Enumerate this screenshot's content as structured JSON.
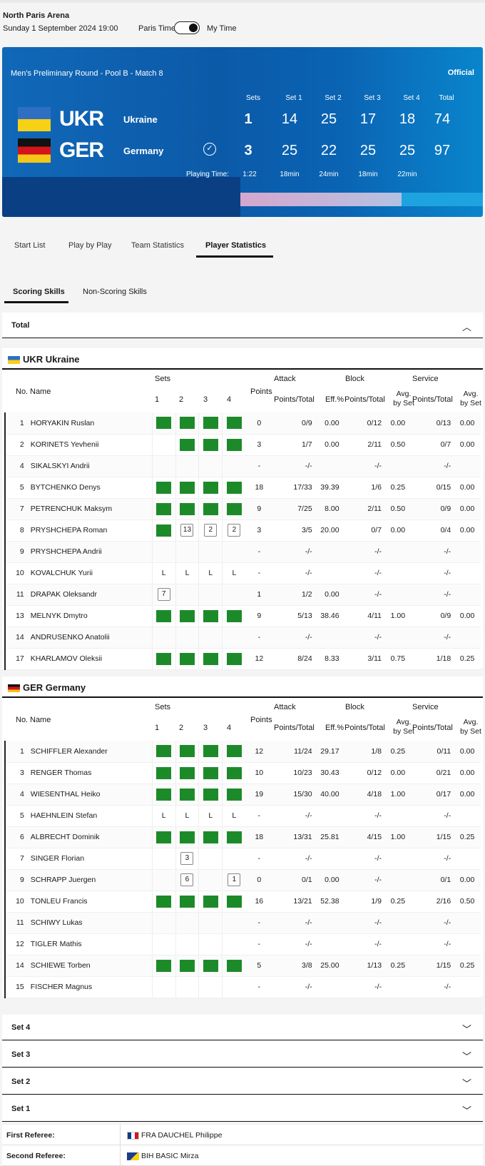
{
  "header": {
    "venue": "North Paris Arena",
    "date": "Sunday 1 September 2024 19:00",
    "tz_paris": "Paris Time",
    "tz_my": "My Time"
  },
  "match": {
    "round": "Men's Preliminary Round - Pool B - Match 8",
    "status": "Official",
    "headers": [
      "Sets",
      "Set 1",
      "Set 2",
      "Set 3",
      "Set 4",
      "Total"
    ],
    "teams": [
      {
        "code": "UKR",
        "name": "Ukraine",
        "sets": "1",
        "set_scores": [
          "14",
          "25",
          "17",
          "18"
        ],
        "total": "74"
      },
      {
        "code": "GER",
        "name": "Germany",
        "sets": "3",
        "set_scores": [
          "25",
          "22",
          "25",
          "25"
        ],
        "total": "97"
      }
    ],
    "playing_time_label": "Playing Time:",
    "playing_time": [
      "1:22",
      "18min",
      "24min",
      "18min",
      "22min"
    ]
  },
  "tabs": [
    "Start List",
    "Play by Play",
    "Team Statistics",
    "Player Statistics"
  ],
  "subtabs": [
    "Scoring Skills",
    "Non-Scoring Skills"
  ],
  "total_label": "Total",
  "table_headers": {
    "no": "No.",
    "name": "Name",
    "sets": "Sets",
    "set_nums": [
      "1",
      "2",
      "3",
      "4"
    ],
    "points": "Points",
    "attack": "Attack",
    "block": "Block",
    "service": "Service",
    "points_total": "Points/Total",
    "eff": "Eff.%",
    "avg_by_set_1": "Avg.",
    "avg_by_set_2": "by Set"
  },
  "ukr": {
    "code": "UKR",
    "name": "Ukraine",
    "players": [
      {
        "no": "1",
        "name": "HORYAKIN Ruslan",
        "sets": [
          "G",
          "G",
          "G",
          "G"
        ],
        "pts": "0",
        "att": "0/9",
        "eff": "0.00",
        "blk": "0/12",
        "blk_avg": "0.00",
        "srv": "0/13",
        "srv_avg": "0.00"
      },
      {
        "no": "2",
        "name": "KORINETS Yevhenii",
        "sets": [
          "",
          "G",
          "G",
          "G"
        ],
        "pts": "3",
        "att": "1/7",
        "eff": "0.00",
        "blk": "2/11",
        "blk_avg": "0.50",
        "srv": "0/7",
        "srv_avg": "0.00"
      },
      {
        "no": "4",
        "name": "SIKALSKYI Andrii",
        "sets": [
          "",
          "",
          "",
          ""
        ],
        "pts": "-",
        "att": "-/-",
        "eff": "",
        "blk": "-/-",
        "blk_avg": "",
        "srv": "-/-",
        "srv_avg": ""
      },
      {
        "no": "5",
        "name": "BYTCHENKO Denys",
        "sets": [
          "G",
          "G",
          "G",
          "G"
        ],
        "pts": "18",
        "att": "17/33",
        "eff": "39.39",
        "blk": "1/6",
        "blk_avg": "0.25",
        "srv": "0/15",
        "srv_avg": "0.00"
      },
      {
        "no": "7",
        "name": "PETRENCHUK Maksym",
        "sets": [
          "G",
          "G",
          "G",
          "G"
        ],
        "pts": "9",
        "att": "7/25",
        "eff": "8.00",
        "blk": "2/11",
        "blk_avg": "0.50",
        "srv": "0/9",
        "srv_avg": "0.00"
      },
      {
        "no": "8",
        "name": "PRYSHCHEPA Roman",
        "sets": [
          "G",
          "B:13",
          "B:2",
          "B:2"
        ],
        "pts": "3",
        "att": "3/5",
        "eff": "20.00",
        "blk": "0/7",
        "blk_avg": "0.00",
        "srv": "0/4",
        "srv_avg": "0.00"
      },
      {
        "no": "9",
        "name": "PRYSHCHEPA Andrii",
        "sets": [
          "",
          "",
          "",
          ""
        ],
        "pts": "-",
        "att": "-/-",
        "eff": "",
        "blk": "-/-",
        "blk_avg": "",
        "srv": "-/-",
        "srv_avg": ""
      },
      {
        "no": "10",
        "name": "KOVALCHUK Yurii",
        "sets": [
          "L",
          "L",
          "L",
          "L"
        ],
        "pts": "-",
        "att": "-/-",
        "eff": "",
        "blk": "-/-",
        "blk_avg": "",
        "srv": "-/-",
        "srv_avg": ""
      },
      {
        "no": "11",
        "name": "DRAPAK Oleksandr",
        "sets": [
          "B:7",
          "",
          "",
          ""
        ],
        "pts": "1",
        "att": "1/2",
        "eff": "0.00",
        "blk": "-/-",
        "blk_avg": "",
        "srv": "-/-",
        "srv_avg": ""
      },
      {
        "no": "13",
        "name": "MELNYK Dmytro",
        "sets": [
          "G",
          "G",
          "G",
          "G"
        ],
        "pts": "9",
        "att": "5/13",
        "eff": "38.46",
        "blk": "4/11",
        "blk_avg": "1.00",
        "srv": "0/9",
        "srv_avg": "0.00"
      },
      {
        "no": "14",
        "name": "ANDRUSENKO Anatolii",
        "sets": [
          "",
          "",
          "",
          ""
        ],
        "pts": "-",
        "att": "-/-",
        "eff": "",
        "blk": "-/-",
        "blk_avg": "",
        "srv": "-/-",
        "srv_avg": ""
      },
      {
        "no": "17",
        "name": "KHARLAMOV Oleksii",
        "sets": [
          "G",
          "G",
          "G",
          "G"
        ],
        "pts": "12",
        "att": "8/24",
        "eff": "8.33",
        "blk": "3/11",
        "blk_avg": "0.75",
        "srv": "1/18",
        "srv_avg": "0.25"
      }
    ]
  },
  "ger": {
    "code": "GER",
    "name": "Germany",
    "players": [
      {
        "no": "1",
        "name": "SCHIFFLER Alexander",
        "sets": [
          "G",
          "G",
          "G",
          "G"
        ],
        "pts": "12",
        "att": "11/24",
        "eff": "29.17",
        "blk": "1/8",
        "blk_avg": "0.25",
        "srv": "0/11",
        "srv_avg": "0.00"
      },
      {
        "no": "3",
        "name": "RENGER Thomas",
        "sets": [
          "G",
          "G",
          "G",
          "G"
        ],
        "pts": "10",
        "att": "10/23",
        "eff": "30.43",
        "blk": "0/12",
        "blk_avg": "0.00",
        "srv": "0/21",
        "srv_avg": "0.00"
      },
      {
        "no": "4",
        "name": "WIESENTHAL Heiko",
        "sets": [
          "G",
          "G",
          "G",
          "G"
        ],
        "pts": "19",
        "att": "15/30",
        "eff": "40.00",
        "blk": "4/18",
        "blk_avg": "1.00",
        "srv": "0/17",
        "srv_avg": "0.00"
      },
      {
        "no": "5",
        "name": "HAEHNLEIN Stefan",
        "sets": [
          "L",
          "L",
          "L",
          "L"
        ],
        "pts": "-",
        "att": "-/-",
        "eff": "",
        "blk": "-/-",
        "blk_avg": "",
        "srv": "-/-",
        "srv_avg": ""
      },
      {
        "no": "6",
        "name": "ALBRECHT Dominik",
        "sets": [
          "G",
          "G",
          "G",
          "G"
        ],
        "pts": "18",
        "att": "13/31",
        "eff": "25.81",
        "blk": "4/15",
        "blk_avg": "1.00",
        "srv": "1/15",
        "srv_avg": "0.25"
      },
      {
        "no": "7",
        "name": "SINGER Florian",
        "sets": [
          "",
          "B:3",
          "",
          ""
        ],
        "pts": "-",
        "att": "-/-",
        "eff": "",
        "blk": "-/-",
        "blk_avg": "",
        "srv": "-/-",
        "srv_avg": ""
      },
      {
        "no": "9",
        "name": "SCHRAPP Juergen",
        "sets": [
          "",
          "B:6",
          "",
          "B:1"
        ],
        "pts": "0",
        "att": "0/1",
        "eff": "0.00",
        "blk": "-/-",
        "blk_avg": "",
        "srv": "0/1",
        "srv_avg": "0.00"
      },
      {
        "no": "10",
        "name": "TONLEU Francis",
        "sets": [
          "G",
          "G",
          "G",
          "G"
        ],
        "pts": "16",
        "att": "13/21",
        "eff": "52.38",
        "blk": "1/9",
        "blk_avg": "0.25",
        "srv": "2/16",
        "srv_avg": "0.50"
      },
      {
        "no": "11",
        "name": "SCHIWY Lukas",
        "sets": [
          "",
          "",
          "",
          ""
        ],
        "pts": "-",
        "att": "-/-",
        "eff": "",
        "blk": "-/-",
        "blk_avg": "",
        "srv": "-/-",
        "srv_avg": ""
      },
      {
        "no": "12",
        "name": "TIGLER Mathis",
        "sets": [
          "",
          "",
          "",
          ""
        ],
        "pts": "-",
        "att": "-/-",
        "eff": "",
        "blk": "-/-",
        "blk_avg": "",
        "srv": "-/-",
        "srv_avg": ""
      },
      {
        "no": "14",
        "name": "SCHIEWE Torben",
        "sets": [
          "G",
          "G",
          "G",
          "G"
        ],
        "pts": "5",
        "att": "3/8",
        "eff": "25.00",
        "blk": "1/13",
        "blk_avg": "0.25",
        "srv": "1/15",
        "srv_avg": "0.25"
      },
      {
        "no": "15",
        "name": "FISCHER Magnus",
        "sets": [
          "",
          "",
          "",
          ""
        ],
        "pts": "-",
        "att": "-/-",
        "eff": "",
        "blk": "-/-",
        "blk_avg": "",
        "srv": "-/-",
        "srv_avg": ""
      }
    ]
  },
  "set_accordions": [
    "Set 4",
    "Set 3",
    "Set 2",
    "Set 1"
  ],
  "referees": [
    {
      "label": "First Referee:",
      "value": "FRA DAUCHEL Philippe",
      "flag": "fra"
    },
    {
      "label": "Second Referee:",
      "value": "BIH BASIC Mirza",
      "flag": "bih"
    }
  ],
  "colors": {
    "active_set": "#1d8a2a",
    "banner_blue": "#0b5aa8"
  }
}
